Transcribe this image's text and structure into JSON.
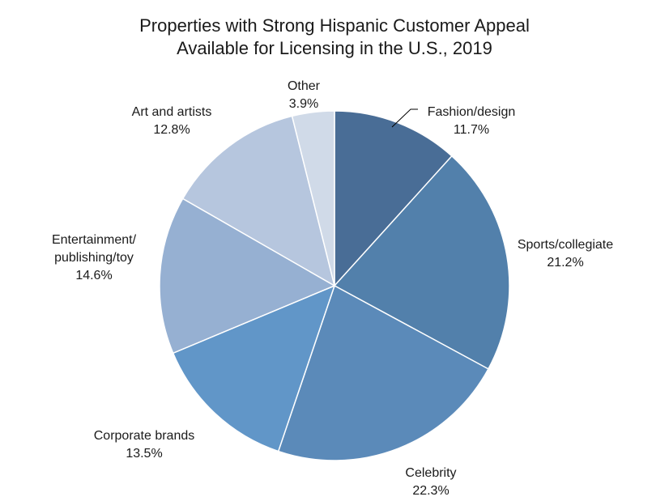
{
  "chart_data": {
    "type": "pie",
    "title": "Properties with Strong Hispanic Customer Appeal",
    "subtitle": "Available for Licensing in the U.S., 2019",
    "slices": [
      {
        "label": "Fashion/design",
        "value": 11.7,
        "display": "11.7%",
        "color": "#496d96"
      },
      {
        "label": "Sports/collegiate",
        "value": 21.2,
        "display": "21.2%",
        "color": "#5280ab"
      },
      {
        "label": "Celebrity",
        "value": 22.3,
        "display": "22.3%",
        "color": "#5b8ab9"
      },
      {
        "label": "Corporate brands",
        "value": 13.5,
        "display": "13.5%",
        "color": "#6196c8"
      },
      {
        "label": "Entertainment/ publishing/toy",
        "value": 14.6,
        "display": "14.6%",
        "color": "#96b0d2"
      },
      {
        "label": "Art and artists",
        "value": 12.8,
        "display": "12.8%",
        "color": "#b6c6de"
      },
      {
        "label": "Other",
        "value": 3.9,
        "display": "3.9%",
        "color": "#d0dae8"
      }
    ],
    "start_angle_deg": 0,
    "direction": "clockwise"
  }
}
